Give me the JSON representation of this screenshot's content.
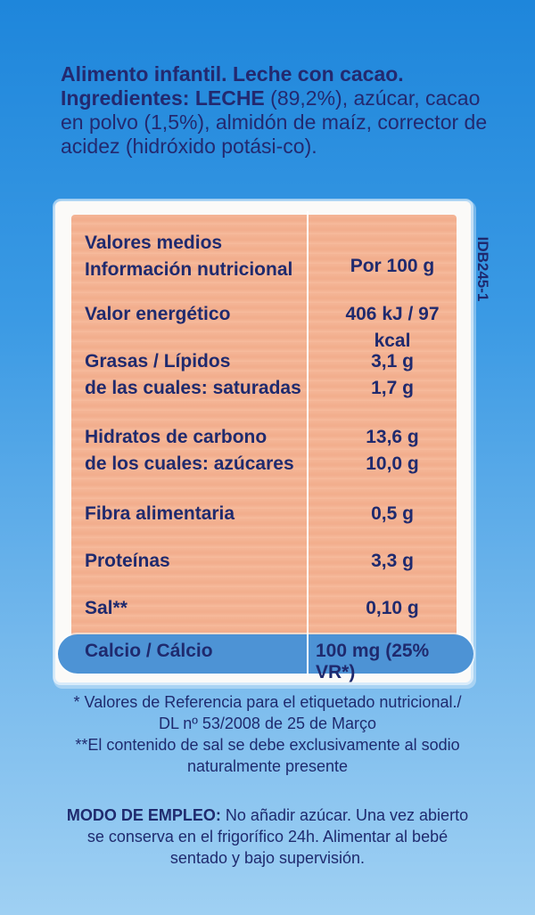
{
  "ingredients": {
    "product_line": "Alimento infantil. Leche con cacao.",
    "ingredients_label": "Ingredientes:",
    "milk": "LECHE",
    "rest": " (89,2%), azúcar, cacao en polvo (1,5%), almidón de maíz, corrector de acidez (hidróxido potási-co)."
  },
  "nutrition": {
    "header_label_1": "Valores medios",
    "header_label_2": "Información nutricional",
    "header_value": "Por 100 g",
    "rows": [
      {
        "label": "Valor energético",
        "value": "406 kJ / 97 kcal"
      },
      {
        "label": "Grasas / Lípidos",
        "value": "3,1 g",
        "sub_label": "de las cuales: saturadas",
        "sub_value": "1,7 g"
      },
      {
        "label": "Hidratos de carbono",
        "value": "13,6 g",
        "sub_label": "de los cuales: azúcares",
        "sub_value": "10,0 g"
      },
      {
        "label": "Fibra alimentaria",
        "value": "0,5 g"
      },
      {
        "label": "Proteínas",
        "value": "3,3 g"
      },
      {
        "label": "Sal**",
        "value": "0,10 g"
      }
    ],
    "calcio_label": "Calcio / Cálcio",
    "calcio_value": "100 mg (25% VR*)"
  },
  "code": "IDB245-1",
  "notes": {
    "ref_note": "* Valores de Referencia para el etiquetado nutricional./ DL nº 53/2008 de 25 de Março",
    "salt_note": "**El contenido de sal se debe exclusivamente al sodio naturalmente presente"
  },
  "usage": {
    "label": "MODO DE EMPLEO:",
    "text": " No añadir azúcar. Una vez abierto se conserva en el frigorífico 24h. Alimentar al bebé sentado y bajo supervisión."
  },
  "colors": {
    "background": "#2a8fdf",
    "panel": "#f4b596",
    "text": "#1f2a6e",
    "calcio_band": "#4d93d5"
  }
}
